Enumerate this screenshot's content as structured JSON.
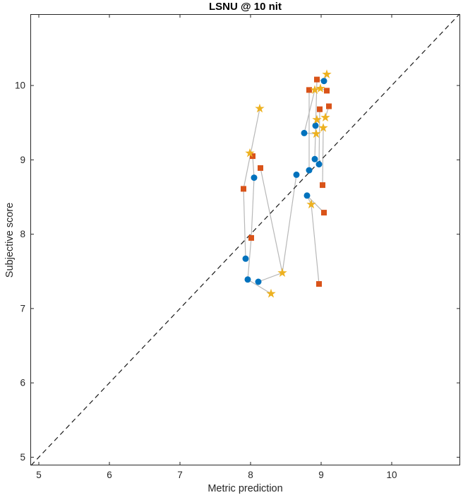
{
  "chart_data": {
    "type": "scatter",
    "title": "LSNU @ 10 nit",
    "xlabel": "Metric prediction",
    "ylabel": "Subjective score",
    "xlim": [
      4.88,
      10.97
    ],
    "ylim": [
      4.89,
      10.96
    ],
    "xticks": [
      5,
      6,
      7,
      8,
      9,
      10
    ],
    "yticks": [
      5,
      6,
      7,
      8,
      9,
      10
    ],
    "grid": false,
    "legend": false,
    "axis_color": "#262626",
    "identity_line": {
      "style": "dashed",
      "color": "#1a1a1a",
      "meaning": "y = x"
    },
    "connections": {
      "color": "#b8b8b8",
      "pairs": [
        [
          2,
          10,
          1,
          10
        ],
        [
          1,
          10,
          0,
          9
        ],
        [
          2,
          11,
          1,
          8
        ],
        [
          1,
          8,
          0,
          8
        ],
        [
          0,
          8,
          1,
          11
        ],
        [
          1,
          11,
          0,
          10
        ],
        [
          0,
          10,
          2,
          9
        ],
        [
          0,
          11,
          2,
          8
        ],
        [
          1,
          9,
          2,
          8
        ],
        [
          2,
          8,
          0,
          6
        ],
        [
          0,
          2,
          2,
          6
        ],
        [
          0,
          7,
          1,
          6
        ],
        [
          2,
          7,
          1,
          7
        ],
        [
          0,
          7,
          2,
          7
        ],
        [
          1,
          0,
          0,
          3
        ],
        [
          1,
          1,
          0,
          5
        ],
        [
          1,
          3,
          0,
          4
        ],
        [
          2,
          5,
          1,
          5
        ],
        [
          1,
          4,
          2,
          4
        ],
        [
          0,
          1,
          2,
          3
        ],
        [
          1,
          0,
          0,
          0
        ],
        [
          0,
          0,
          2,
          0
        ],
        [
          1,
          2,
          2,
          1
        ],
        [
          2,
          2,
          0,
          2
        ]
      ]
    },
    "series": [
      {
        "name": "circle-series",
        "marker": "circle",
        "color": "#0072BD",
        "points": [
          [
            9.04,
            10.06
          ],
          [
            8.92,
            9.46
          ],
          [
            8.76,
            9.36
          ],
          [
            8.91,
            9.01
          ],
          [
            8.97,
            8.94
          ],
          [
            8.83,
            8.86
          ],
          [
            8.65,
            8.8
          ],
          [
            8.8,
            8.52
          ],
          [
            8.05,
            8.76
          ],
          [
            7.93,
            7.67
          ],
          [
            7.96,
            7.39
          ],
          [
            8.11,
            7.36
          ]
        ]
      },
      {
        "name": "square-series",
        "marker": "square",
        "color": "#D95319",
        "points": [
          [
            8.94,
            10.08
          ],
          [
            8.83,
            9.94
          ],
          [
            9.08,
            9.93
          ],
          [
            8.98,
            9.68
          ],
          [
            9.11,
            9.72
          ],
          [
            9.02,
            8.66
          ],
          [
            9.04,
            8.29
          ],
          [
            8.97,
            7.33
          ],
          [
            8.03,
            9.05
          ],
          [
            8.14,
            8.89
          ],
          [
            7.9,
            8.61
          ],
          [
            8.01,
            7.95
          ]
        ]
      },
      {
        "name": "star-series",
        "marker": "star",
        "color": "#EDB120",
        "points": [
          [
            9.08,
            10.15
          ],
          [
            8.99,
            9.96
          ],
          [
            8.91,
            9.94
          ],
          [
            8.94,
            9.54
          ],
          [
            9.06,
            9.57
          ],
          [
            9.03,
            9.43
          ],
          [
            8.93,
            9.35
          ],
          [
            8.86,
            8.4
          ],
          [
            8.45,
            7.48
          ],
          [
            8.29,
            7.2
          ],
          [
            8.13,
            9.69
          ],
          [
            7.99,
            9.09
          ]
        ]
      }
    ]
  }
}
